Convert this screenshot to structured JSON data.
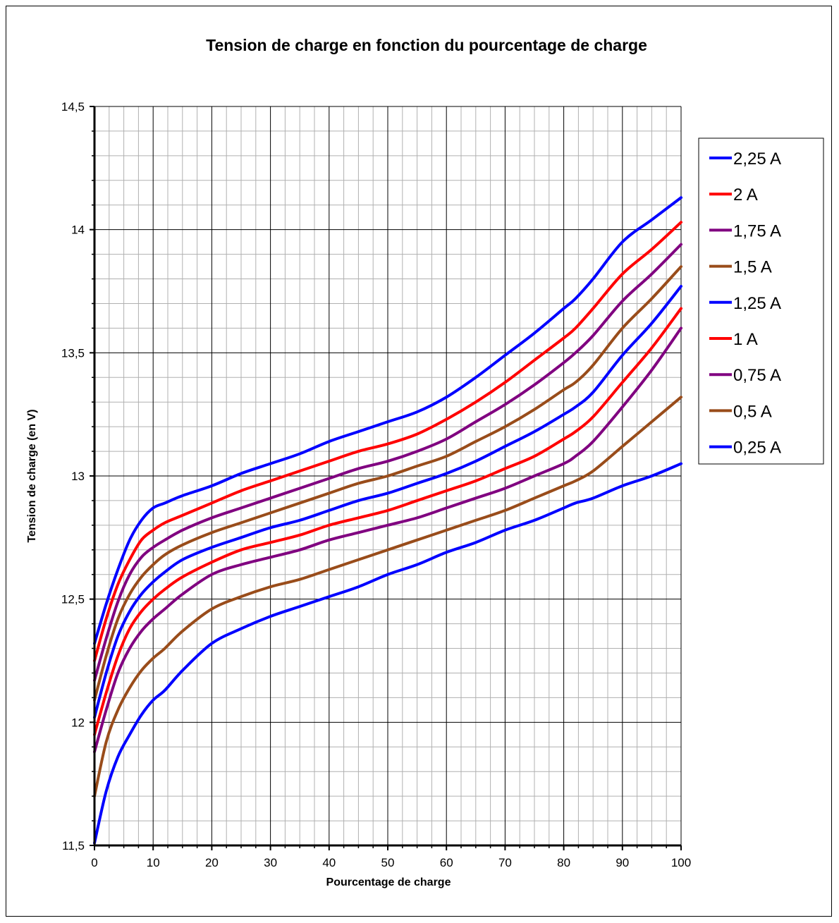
{
  "chart_data": {
    "type": "line",
    "title": "Tension de charge en fonction du pourcentage de charge",
    "xlabel": "Pourcentage de charge",
    "ylabel": "Tension de charge (en V)",
    "xlim": [
      0,
      100
    ],
    "ylim": [
      11.5,
      14.5
    ],
    "x_ticks": [
      "0",
      "10",
      "20",
      "30",
      "40",
      "50",
      "60",
      "70",
      "80",
      "90",
      "100"
    ],
    "y_ticks": [
      "11,5",
      "12",
      "12,5",
      "13",
      "13,5",
      "14",
      "14,5"
    ],
    "grid": true,
    "legend_position": "right",
    "x": [
      0,
      2,
      4,
      6,
      8,
      10,
      12,
      15,
      20,
      25,
      30,
      35,
      40,
      45,
      50,
      55,
      60,
      65,
      70,
      75,
      80,
      82,
      85,
      90,
      95,
      100
    ],
    "series": [
      {
        "name": "2,25 A",
        "color": "#0000ff",
        "values": [
          12.32,
          12.48,
          12.62,
          12.74,
          12.82,
          12.87,
          12.89,
          12.92,
          12.96,
          13.01,
          13.05,
          13.09,
          13.14,
          13.18,
          13.22,
          13.26,
          13.32,
          13.4,
          13.49,
          13.58,
          13.68,
          13.72,
          13.8,
          13.95,
          14.04,
          14.13
        ]
      },
      {
        "name": "2 A",
        "color": "#ff0000",
        "values": [
          12.25,
          12.42,
          12.56,
          12.66,
          12.74,
          12.78,
          12.81,
          12.84,
          12.89,
          12.94,
          12.98,
          13.02,
          13.06,
          13.1,
          13.13,
          13.17,
          13.23,
          13.3,
          13.38,
          13.47,
          13.56,
          13.6,
          13.68,
          13.82,
          13.92,
          14.03
        ]
      },
      {
        "name": "1,75 A",
        "color": "#800080",
        "values": [
          12.17,
          12.34,
          12.49,
          12.6,
          12.67,
          12.71,
          12.74,
          12.78,
          12.83,
          12.87,
          12.91,
          12.95,
          12.99,
          13.03,
          13.06,
          13.1,
          13.15,
          13.22,
          13.29,
          13.37,
          13.46,
          13.5,
          13.57,
          13.71,
          13.82,
          13.94
        ]
      },
      {
        "name": "1,5 A",
        "color": "#994c1a",
        "values": [
          12.09,
          12.27,
          12.42,
          12.52,
          12.59,
          12.64,
          12.68,
          12.72,
          12.77,
          12.81,
          12.85,
          12.89,
          12.93,
          12.97,
          13.0,
          13.04,
          13.08,
          13.14,
          13.2,
          13.27,
          13.35,
          13.38,
          13.45,
          13.6,
          13.72,
          13.85
        ]
      },
      {
        "name": "1,25 A",
        "color": "#0000ff",
        "values": [
          12.02,
          12.2,
          12.35,
          12.45,
          12.52,
          12.57,
          12.61,
          12.66,
          12.71,
          12.75,
          12.79,
          12.82,
          12.86,
          12.9,
          12.93,
          12.97,
          13.01,
          13.06,
          13.12,
          13.18,
          13.25,
          13.28,
          13.34,
          13.49,
          13.62,
          13.77
        ]
      },
      {
        "name": "1 A",
        "color": "#ff0000",
        "values": [
          11.95,
          12.12,
          12.27,
          12.38,
          12.45,
          12.5,
          12.54,
          12.59,
          12.65,
          12.7,
          12.73,
          12.76,
          12.8,
          12.83,
          12.86,
          12.9,
          12.94,
          12.98,
          13.03,
          13.08,
          13.15,
          13.18,
          13.24,
          13.38,
          13.52,
          13.68
        ]
      },
      {
        "name": "0,75 A",
        "color": "#800080",
        "values": [
          11.88,
          12.05,
          12.2,
          12.3,
          12.37,
          12.42,
          12.46,
          12.52,
          12.6,
          12.64,
          12.67,
          12.7,
          12.74,
          12.77,
          12.8,
          12.83,
          12.87,
          12.91,
          12.95,
          13.0,
          13.05,
          13.08,
          13.14,
          13.28,
          13.43,
          13.6
        ]
      },
      {
        "name": "0,5 A",
        "color": "#994c1a",
        "values": [
          11.7,
          11.92,
          12.05,
          12.14,
          12.21,
          12.26,
          12.3,
          12.37,
          12.46,
          12.51,
          12.55,
          12.58,
          12.62,
          12.66,
          12.7,
          12.74,
          12.78,
          12.82,
          12.86,
          12.91,
          12.96,
          12.98,
          13.02,
          13.12,
          13.22,
          13.32
        ]
      },
      {
        "name": "0,25 A",
        "color": "#0000ff",
        "values": [
          11.51,
          11.72,
          11.86,
          11.95,
          12.03,
          12.09,
          12.13,
          12.21,
          12.32,
          12.38,
          12.43,
          12.47,
          12.51,
          12.55,
          12.6,
          12.64,
          12.69,
          12.73,
          12.78,
          12.82,
          12.87,
          12.89,
          12.91,
          12.96,
          13.0,
          13.05
        ]
      }
    ]
  }
}
